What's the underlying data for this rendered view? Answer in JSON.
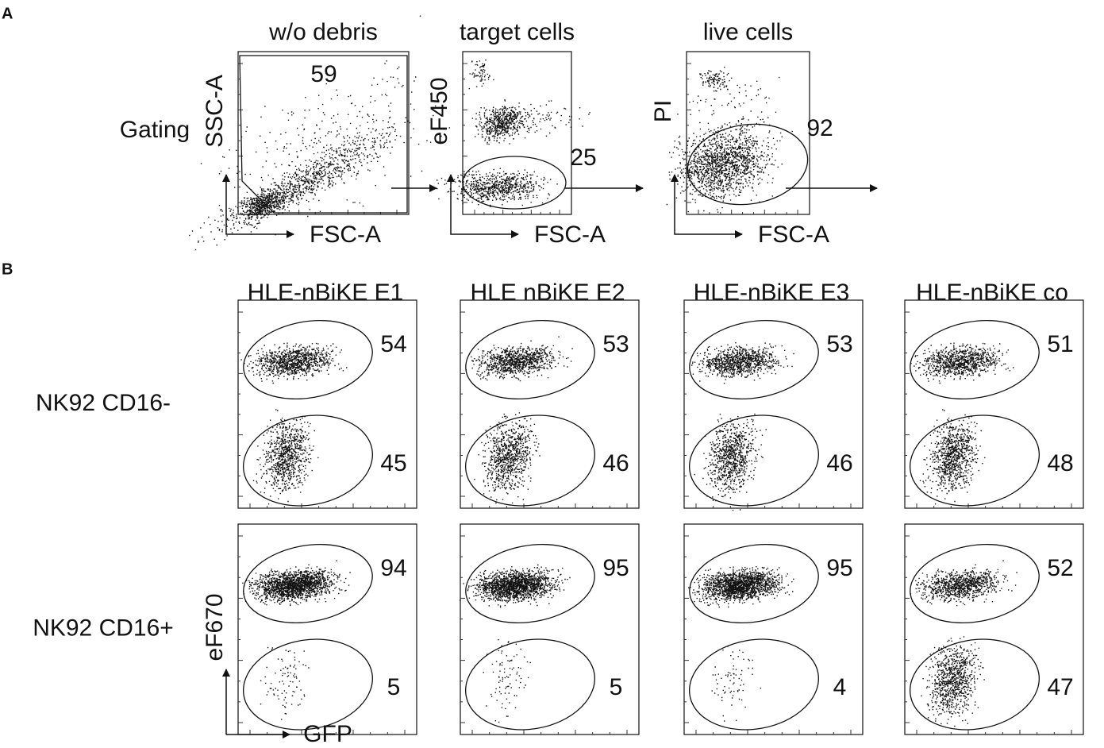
{
  "panel_a": {
    "label": "A",
    "row_label": "Gating",
    "plots": [
      {
        "title": "w/o debris",
        "x_label": "FSC-A",
        "y_label": "SSC-A",
        "gate_value": 59
      },
      {
        "title": "target cells",
        "x_label": "FSC-A",
        "y_label": "eF450",
        "gate_value": 25
      },
      {
        "title": "live cells",
        "x_label": "FSC-A",
        "y_label": "PI",
        "gate_value": 92
      }
    ]
  },
  "panel_b": {
    "label": "B",
    "x_label": "GFP",
    "y_label": "eF670",
    "columns": [
      "HLE-nBiKE E1",
      "HLE nBiKE E2",
      "HLE-nBiKE E3",
      "HLE-nBiKE co"
    ],
    "rows": [
      {
        "label": "NK92 CD16-",
        "cells": [
          {
            "upper": 54,
            "lower": 45
          },
          {
            "upper": 53,
            "lower": 46
          },
          {
            "upper": 53,
            "lower": 46
          },
          {
            "upper": 51,
            "lower": 48
          }
        ]
      },
      {
        "label": "NK92 CD16+",
        "cells": [
          {
            "upper": 94,
            "lower": 5
          },
          {
            "upper": 95,
            "lower": 5
          },
          {
            "upper": 95,
            "lower": 4
          },
          {
            "upper": 52,
            "lower": 47
          }
        ]
      }
    ]
  }
}
